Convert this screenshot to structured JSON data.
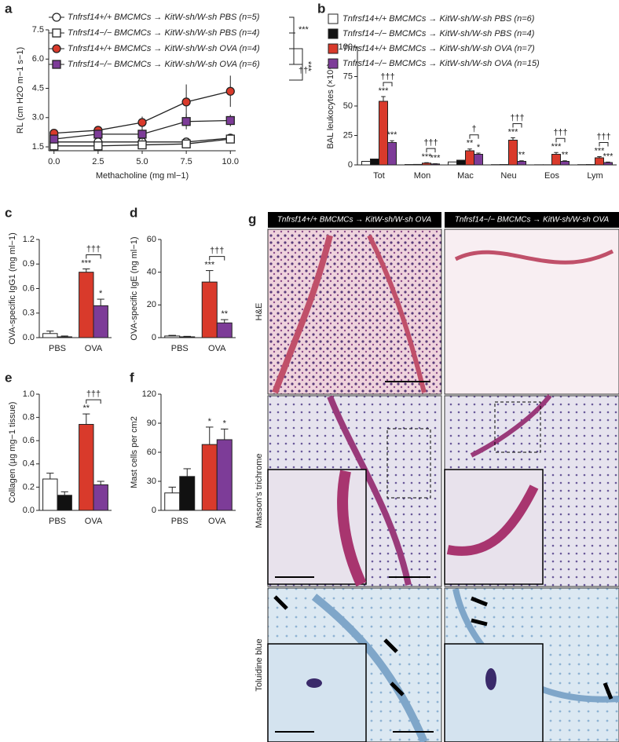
{
  "chart_data": [
    {
      "type": "line",
      "label": "a",
      "xlabel": "Methacholine (mg ml−1)",
      "ylabel": "RL (cm H2O m−1 s−1)",
      "x": [
        0,
        2.5,
        5,
        7.5,
        10
      ],
      "xlim": [
        -0.3,
        10.3
      ],
      "xticks": [
        {
          "value": 0,
          "label": "0.0"
        },
        2.5,
        {
          "value": 5,
          "label": "5.0"
        },
        7.5,
        {
          "value": 10,
          "label": "10.0"
        }
      ],
      "ylim": [
        1.3,
        7.5
      ],
      "yticks": [
        1.5,
        {
          "value": 3,
          "label": "3.0"
        },
        4.5,
        {
          "value": 6,
          "label": "6.0"
        },
        7.5
      ],
      "series": [
        {
          "name": "Tnfrsf14+/+ BMCMCs → KitW-sh/W-sh PBS (n=5)",
          "marker": "circle",
          "color": "#ffffff",
          "values": [
            1.75,
            1.75,
            1.75,
            1.75,
            1.95
          ],
          "errors": [
            0.08,
            0.08,
            0.1,
            0.12,
            0.1
          ]
        },
        {
          "name": "Tnfrsf14−/− BMCMCs → KitW-sh/W-sh PBS (n=4)",
          "marker": "square",
          "color": "#ffffff",
          "values": [
            1.55,
            1.55,
            1.6,
            1.65,
            1.9
          ],
          "errors": [
            0.05,
            0.05,
            0.06,
            0.08,
            0.1
          ]
        },
        {
          "name": "Tnfrsf14+/+ BMCMCs → KitW-sh/W-sh OVA (n=4)",
          "marker": "circle",
          "color": "#d93a2b",
          "values": [
            2.2,
            2.35,
            2.75,
            3.8,
            4.35
          ],
          "errors": [
            0.2,
            0.2,
            0.3,
            0.9,
            0.8
          ]
        },
        {
          "name": "Tnfrsf14−/− BMCMCs → KitW-sh/W-sh OVA (n=6)",
          "marker": "square",
          "color": "#7d3c98",
          "values": [
            1.9,
            2.15,
            2.15,
            2.8,
            2.85
          ],
          "errors": [
            0.15,
            0.2,
            0.3,
            0.4,
            0.3
          ]
        }
      ],
      "annotations": [
        "***",
        "***",
        "††"
      ]
    },
    {
      "type": "bar",
      "label": "b",
      "ylabel": "BAL leukocytes (×10⁴)",
      "categories": [
        "Tot",
        "Mon",
        "Mac",
        "Neu",
        "Eos",
        "Lym"
      ],
      "ylim": [
        0,
        100
      ],
      "yticks": [
        0,
        25,
        50,
        75,
        100
      ],
      "series": [
        {
          "name": "Tnfrsf14+/+ BMCMCs → KitW-sh/W-sh PBS (n=6)",
          "color": "#ffffff",
          "values": [
            3,
            0.3,
            2.5,
            0.2,
            0.1,
            0.2
          ]
        },
        {
          "name": "Tnfrsf14−/− BMCMCs → KitW-sh/W-sh PBS (n=4)",
          "color": "#111111",
          "values": [
            5,
            0.4,
            4,
            0.3,
            0.1,
            0.3
          ]
        },
        {
          "name": "Tnfrsf14+/+ BMCMCs → KitW-sh/W-sh OVA (n=7)",
          "color": "#d93a2b",
          "values": [
            54,
            1.5,
            12,
            21,
            9,
            6
          ],
          "errors": [
            4,
            0.4,
            1.5,
            2,
            1.5,
            1
          ],
          "annotations": [
            "***",
            "***",
            "**",
            "***",
            "***",
            "***"
          ]
        },
        {
          "name": "Tnfrsf14−/− BMCMCs → KitW-sh/W-sh OVA (n=15)",
          "color": "#7d3c98",
          "values": [
            19,
            0.8,
            9,
            3,
            3,
            2
          ],
          "errors": [
            1.5,
            0.2,
            1,
            0.5,
            0.5,
            0.4
          ],
          "annotations": [
            "***",
            "***",
            "*",
            "**",
            "**",
            "***"
          ]
        }
      ],
      "brackets": [
        "†††",
        "†††",
        "†",
        "†††",
        "†††",
        "†††"
      ]
    },
    {
      "type": "bar",
      "label": "c",
      "ylabel": "OVA-specific IgG1 (mg ml−1)",
      "categories": [
        "PBS",
        "OVA"
      ],
      "ylim": [
        0,
        1.2
      ],
      "yticks": [
        {
          "value": 0,
          "label": "0.0"
        },
        0.3,
        0.6,
        0.9,
        1.2
      ],
      "series": [
        {
          "colors": [
            "#ffffff",
            "#d93a2b"
          ],
          "values": [
            0.05,
            0.8
          ],
          "errors": [
            0.03,
            0.04
          ],
          "annotations": [
            null,
            "***"
          ]
        },
        {
          "colors": [
            "#111111",
            "#7d3c98"
          ],
          "values": [
            0.01,
            0.39
          ],
          "errors": [
            0.01,
            0.08
          ],
          "annotations": [
            null,
            "*"
          ]
        }
      ],
      "brackets": [
        null,
        "†††"
      ]
    },
    {
      "type": "bar",
      "label": "d",
      "ylabel": "OVA-specific IgE (ng ml−1)",
      "categories": [
        "PBS",
        "OVA"
      ],
      "ylim": [
        0,
        60
      ],
      "yticks": [
        0,
        20,
        40,
        60
      ],
      "series": [
        {
          "colors": [
            "#ffffff",
            "#d93a2b"
          ],
          "values": [
            1,
            34
          ],
          "errors": [
            0.4,
            7
          ],
          "annotations": [
            null,
            "***"
          ]
        },
        {
          "colors": [
            "#111111",
            "#7d3c98"
          ],
          "values": [
            0.5,
            9
          ],
          "errors": [
            0.3,
            2
          ],
          "annotations": [
            null,
            "**"
          ]
        }
      ],
      "brackets": [
        null,
        "†††"
      ]
    },
    {
      "type": "bar",
      "label": "e",
      "ylabel": "Collagen (µg mg−1 tissue)",
      "categories": [
        "PBS",
        "OVA"
      ],
      "ylim": [
        0,
        1
      ],
      "yticks": [
        {
          "value": 0,
          "label": "0.0"
        },
        0.2,
        0.4,
        0.6,
        0.8,
        {
          "value": 1,
          "label": "1.0"
        }
      ],
      "series": [
        {
          "colors": [
            "#ffffff",
            "#d93a2b"
          ],
          "values": [
            0.27,
            0.74
          ],
          "errors": [
            0.05,
            0.09
          ],
          "annotations": [
            null,
            "**"
          ]
        },
        {
          "colors": [
            "#111111",
            "#7d3c98"
          ],
          "values": [
            0.13,
            0.22
          ],
          "errors": [
            0.03,
            0.03
          ]
        }
      ],
      "brackets": [
        null,
        "†††"
      ]
    },
    {
      "type": "bar",
      "label": "f",
      "ylabel": "Mast cells per cm2",
      "categories": [
        "PBS",
        "OVA"
      ],
      "ylim": [
        0,
        120
      ],
      "yticks": [
        0,
        30,
        60,
        90,
        120
      ],
      "series": [
        {
          "colors": [
            "#ffffff",
            "#d93a2b"
          ],
          "values": [
            18,
            68
          ],
          "errors": [
            6,
            18
          ],
          "annotations": [
            null,
            "*"
          ]
        },
        {
          "colors": [
            "#111111",
            "#7d3c98"
          ],
          "values": [
            35,
            73
          ],
          "errors": [
            8,
            11
          ],
          "annotations": [
            null,
            "*"
          ]
        }
      ]
    }
  ],
  "histology": {
    "label": "g",
    "columns": [
      "Tnfrsf14+/+ BMCMCs → KitW-sh/W-sh OVA",
      "Tnfrsf14−/− BMCMCs → KitW-sh/W-sh OVA"
    ],
    "rows": [
      "H&E",
      "Masson's trichrome",
      "Toluidine blue"
    ]
  }
}
